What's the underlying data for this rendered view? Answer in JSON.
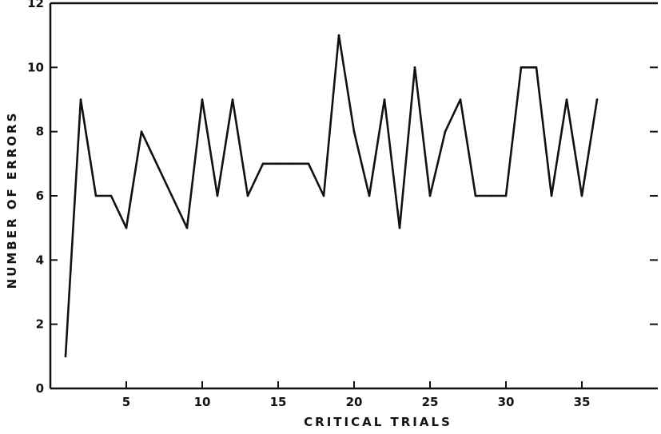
{
  "chart_data": {
    "type": "line",
    "xlabel": "CRITICAL TRIALS",
    "ylabel": "NUMBER OF ERRORS",
    "xlim": [
      0,
      40
    ],
    "ylim": [
      0,
      12
    ],
    "xticks": [
      5,
      10,
      15,
      20,
      25,
      30,
      35
    ],
    "xtick_labels": [
      "5",
      "10",
      "15",
      "20",
      "25",
      "30",
      "35"
    ],
    "yticks": [
      0,
      2,
      4,
      6,
      8,
      10,
      12
    ],
    "ytick_labels": [
      "0",
      "2",
      "4",
      "6",
      "8",
      "10",
      "12"
    ],
    "grid": false,
    "legend": "none",
    "line_color": "#111111",
    "x": [
      1,
      2,
      3,
      4,
      5,
      6,
      7,
      8,
      9,
      10,
      11,
      12,
      13,
      14,
      15,
      16,
      17,
      18,
      19,
      20,
      21,
      22,
      23,
      24,
      25,
      26,
      27,
      28,
      29,
      30,
      31,
      32,
      33,
      34,
      35,
      36
    ],
    "series": [
      {
        "values": [
          1,
          9,
          6,
          6,
          5,
          8,
          7,
          6,
          5,
          9,
          6,
          9,
          6,
          7,
          7,
          7,
          7,
          6,
          11,
          8,
          6,
          9,
          5,
          10,
          6,
          8,
          9,
          6,
          6,
          6,
          10,
          10,
          6,
          9,
          6,
          9
        ]
      }
    ]
  }
}
